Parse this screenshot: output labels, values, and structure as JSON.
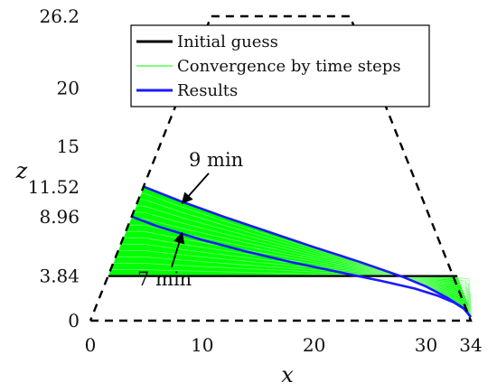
{
  "chart_data": {
    "type": "line",
    "xlabel": "x",
    "ylabel": "z",
    "xlim": [
      0,
      34
    ],
    "ylim": [
      0,
      26.2
    ],
    "x_ticks": [
      0,
      10,
      20,
      30,
      34
    ],
    "y_ticks": [
      0,
      3.84,
      8.96,
      11.52,
      15,
      20,
      26.2
    ],
    "grid": false,
    "legend_position": "top-center",
    "legend": [
      {
        "label": "Initial guess",
        "color": "#000000"
      },
      {
        "label": "Convergence by time steps",
        "color": "#7dff7d"
      },
      {
        "label": "Results",
        "color": "#1a1aff"
      }
    ],
    "boundary": {
      "style": "dashed",
      "color": "#000000",
      "points": [
        [
          0,
          0
        ],
        [
          34,
          0
        ],
        [
          23.2,
          26.2
        ],
        [
          10.8,
          26.2
        ],
        [
          0,
          0
        ]
      ]
    },
    "series": [
      {
        "role": "initial",
        "color": "#000000",
        "points": [
          [
            1.6,
            3.84
          ],
          [
            32.8,
            3.84
          ]
        ]
      },
      {
        "role": "result",
        "annotation": "9 min",
        "color": "#1a1aff",
        "points": [
          [
            4.8,
            11.52
          ],
          [
            8,
            10.3
          ],
          [
            12,
            8.92
          ],
          [
            16,
            7.62
          ],
          [
            20,
            6.32
          ],
          [
            24,
            5.08
          ],
          [
            28,
            3.74
          ],
          [
            30,
            2.94
          ],
          [
            32,
            1.92
          ],
          [
            33.3,
            1.12
          ],
          [
            34,
            0.3
          ]
        ]
      },
      {
        "role": "result",
        "annotation": "7 min",
        "color": "#1a1aff",
        "points": [
          [
            3.7,
            8.96
          ],
          [
            6,
            8.12
          ],
          [
            10,
            6.95
          ],
          [
            14,
            5.93
          ],
          [
            18,
            5.02
          ],
          [
            22,
            4.22
          ],
          [
            26,
            3.42
          ],
          [
            29,
            2.76
          ],
          [
            31,
            2.16
          ],
          [
            32.5,
            1.56
          ],
          [
            33.5,
            0.96
          ],
          [
            34,
            0.3
          ]
        ]
      }
    ],
    "convergence_fill": {
      "color": "#00ff00",
      "line_color": "#7dff7d",
      "right_edge": [
        [
          32.8,
          3.84
        ],
        [
          33.4,
          2.3
        ],
        [
          33.8,
          1.3
        ],
        [
          34,
          0.3
        ]
      ]
    },
    "annotations": [
      {
        "text": "9 min",
        "text_at": [
          8.8,
          13.3
        ],
        "arrow_to": [
          8.2,
          10.1
        ]
      },
      {
        "text": "7 min",
        "text_at": [
          4.2,
          3.05
        ],
        "arrow_to": [
          8.2,
          7.55
        ]
      }
    ]
  }
}
